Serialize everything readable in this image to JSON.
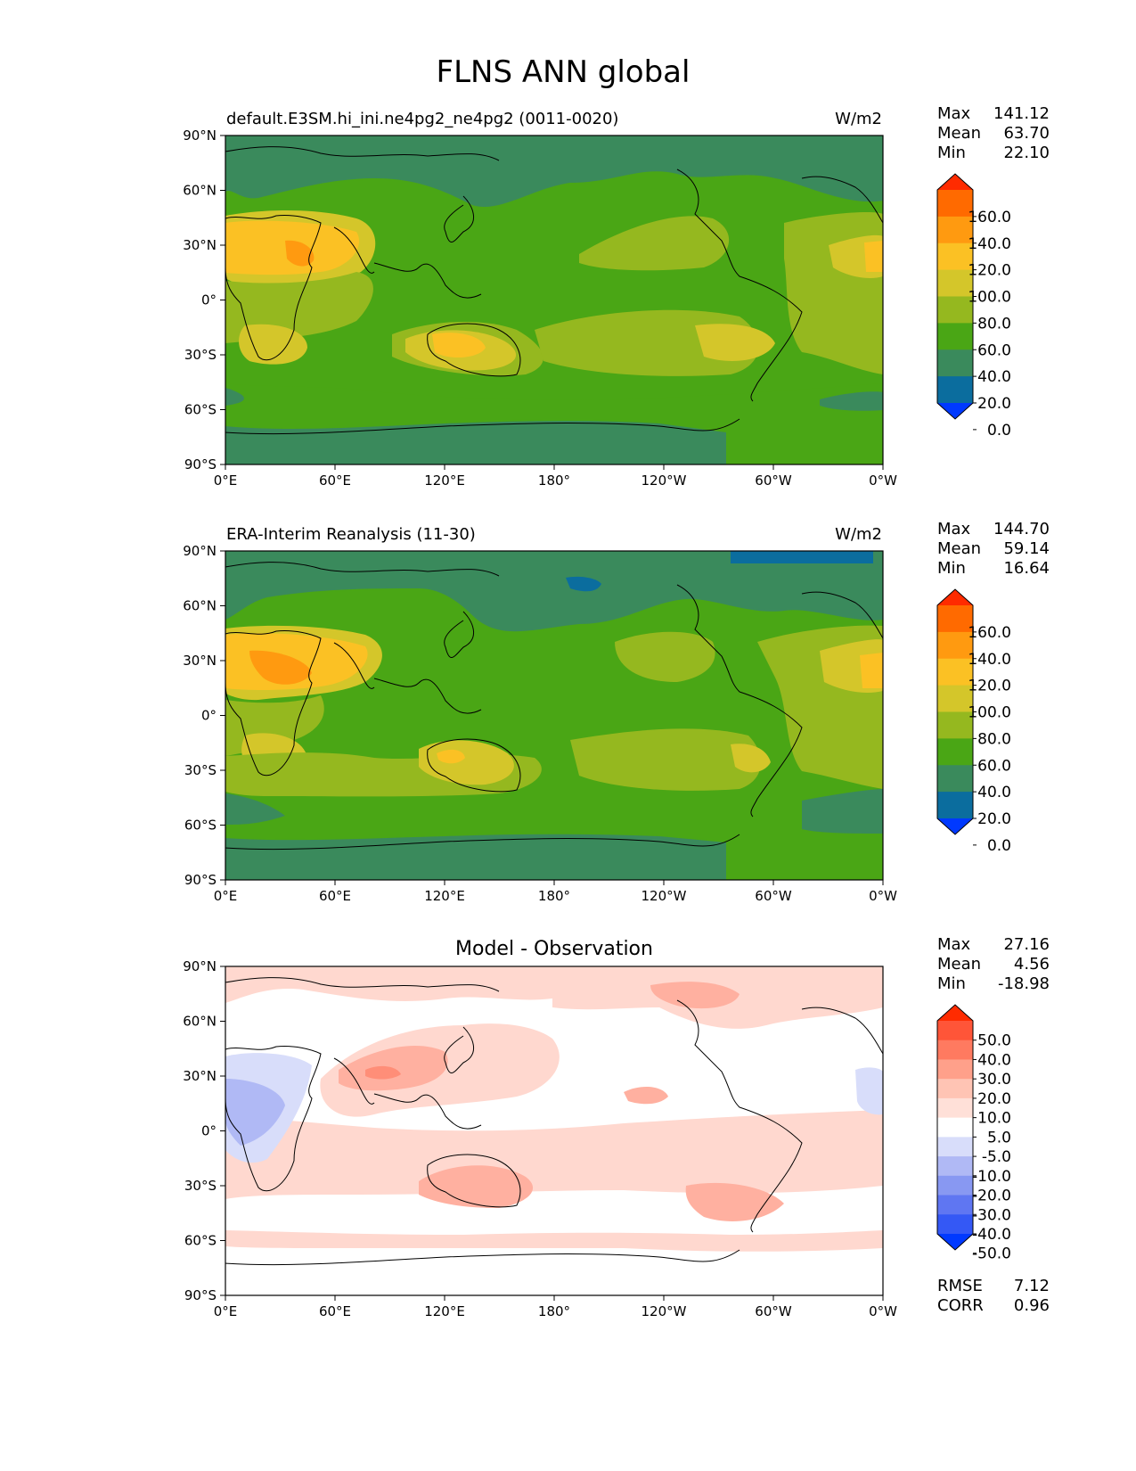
{
  "title": "FLNS ANN global",
  "lon_labels": [
    "0°E",
    "60°E",
    "120°E",
    "180°",
    "120°W",
    "60°W",
    "0°W"
  ],
  "lat_labels": [
    "90°N",
    "60°N",
    "30°N",
    "0°",
    "30°S",
    "60°S",
    "90°S"
  ],
  "stat_labels": {
    "max": "Max",
    "mean": "Mean",
    "min": "Min",
    "rmse": "RMSE",
    "corr": "CORR"
  },
  "panels": [
    {
      "left_title": "default.E3SM.hi_ini.ne4pg2_ne4pg2 (0011-0020)",
      "center_title": "",
      "units": "W/m2",
      "stats": {
        "max": "141.12",
        "mean": "63.70",
        "min": "22.10"
      },
      "colorbar": {
        "labels": [
          "160.0",
          "140.0",
          "120.0",
          "100.0",
          "80.0",
          "60.0",
          "40.0",
          "20.0",
          "0.0"
        ],
        "colors": [
          "#ff2b00",
          "#ff6a00",
          "#ff9a10",
          "#fbc124",
          "#d4c62a",
          "#95b81f",
          "#4aa615",
          "#3a8a5c",
          "#0b6d9e",
          "#0039ff"
        ]
      }
    },
    {
      "left_title": "ERA-Interim Reanalysis (11-30)",
      "center_title": "",
      "units": "W/m2",
      "stats": {
        "max": "144.70",
        "mean": "59.14",
        "min": "16.64"
      },
      "colorbar": {
        "labels": [
          "160.0",
          "140.0",
          "120.0",
          "100.0",
          "80.0",
          "60.0",
          "40.0",
          "20.0",
          "0.0"
        ],
        "colors": [
          "#ff2b00",
          "#ff6a00",
          "#ff9a10",
          "#fbc124",
          "#d4c62a",
          "#95b81f",
          "#4aa615",
          "#3a8a5c",
          "#0b6d9e",
          "#0039ff"
        ]
      }
    },
    {
      "left_title": "",
      "center_title": "Model - Observation",
      "units": "",
      "stats": {
        "max": "27.16",
        "mean": "4.56",
        "min": "-18.98",
        "rmse": "7.12",
        "corr": "0.96"
      },
      "colorbar": {
        "labels": [
          "50.0",
          "40.0",
          "30.0",
          "20.0",
          "10.0",
          "5.0",
          "-5.0",
          "-10.0",
          "-20.0",
          "-30.0",
          "-40.0",
          "-50.0"
        ],
        "colors": [
          "#ff2b00",
          "#ff5538",
          "#ff7a60",
          "#ffa08a",
          "#ffc4b4",
          "#ffe0d8",
          "#ffffff",
          "#d8ddfa",
          "#b0b9f5",
          "#8898f2",
          "#5f76f2",
          "#3458f5",
          "#0039ff"
        ]
      }
    }
  ],
  "map_colors": {
    "c0": "#3a8a5c",
    "c20": "#3a8a5c",
    "c40": "#4aa615",
    "c60": "#95b81f",
    "c80": "#d4c62a",
    "c100": "#fbc124",
    "c120": "#ff9a10",
    "c_low": "#0b6d9e",
    "d_pos1": "#ffd8cf",
    "d_pos2": "#ffb0a0",
    "d_pos3": "#ff8e78",
    "d_neg1": "#d8ddfa",
    "d_neg2": "#b0b9f5"
  }
}
